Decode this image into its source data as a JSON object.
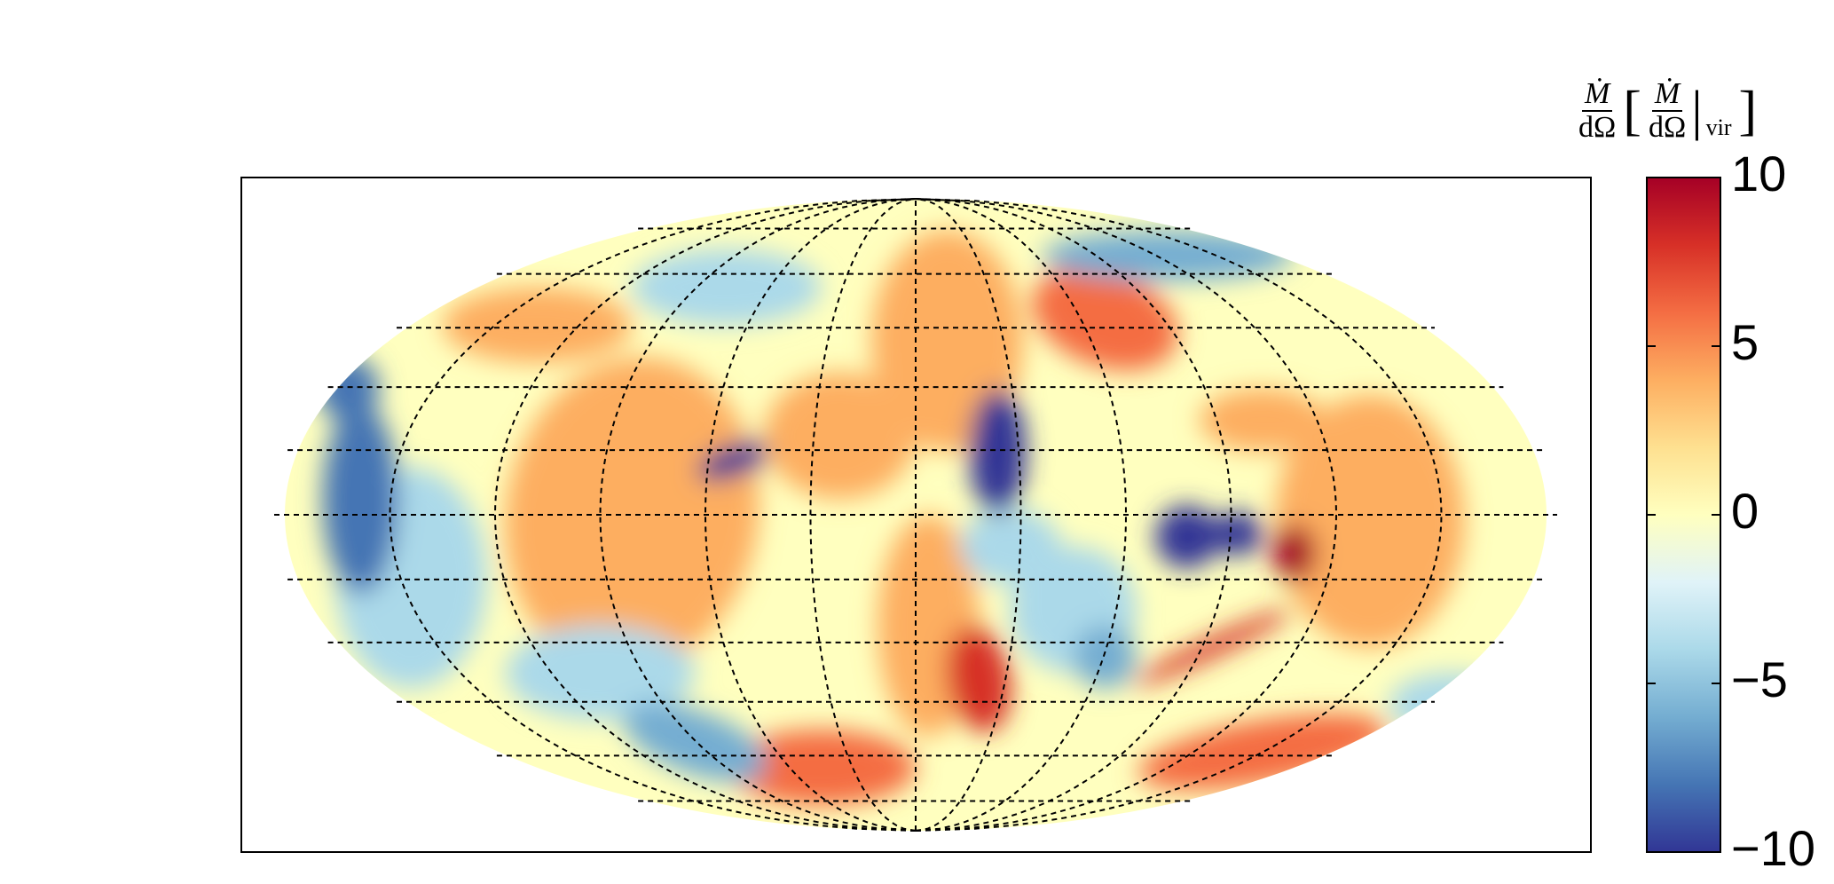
{
  "chart_data": {
    "type": "map",
    "projection": "mollweide",
    "colorbar": {
      "label": {
        "numerator": "Ṁ",
        "denominator": "dΩ",
        "bracket_numerator": "Ṁ",
        "bracket_denominator": "dΩ",
        "subscript": "vir"
      },
      "clim": [
        -10,
        10
      ],
      "ticks": [
        {
          "value": -10,
          "label": "−10"
        },
        {
          "value": -5,
          "label": "−5"
        },
        0,
        5,
        10
      ],
      "colormap": [
        "#313695",
        "#4575b4",
        "#74add1",
        "#abd9e9",
        "#e0f3f8",
        "#ffffbf",
        "#fee090",
        "#fdae61",
        "#f46d43",
        "#d73027",
        "#a50026"
      ]
    }
  }
}
